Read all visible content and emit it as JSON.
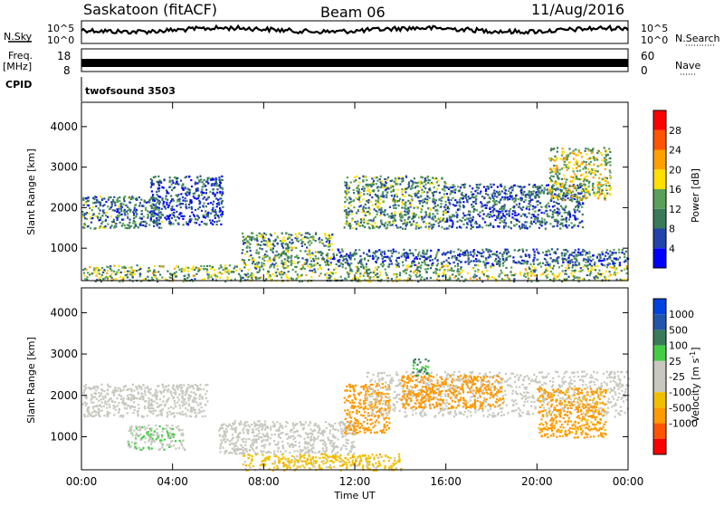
{
  "header": {
    "station": "Saskatoon (fitACF)",
    "beam": "Beam 06",
    "date": "11/Aug/2016"
  },
  "side_labels": {
    "nsky": "N.Sky",
    "freq": "Freq.",
    "freq_unit": "[MHz]",
    "cpid": "CPID",
    "nsearch": "N.Search",
    "nave": "Nave"
  },
  "cpid_value": "twofsound 3503",
  "noise_panel": {
    "left_ticks": [
      "10^5",
      "10^0"
    ],
    "right_ticks": [
      "10^5",
      "10^0"
    ]
  },
  "freq_panel": {
    "left_ticks": [
      "18",
      "8"
    ],
    "right_ticks": [
      "60",
      "0"
    ]
  },
  "colors": {
    "power": [
      "#0000ff",
      "#2244aa",
      "#3a7a5a",
      "#5aa05a",
      "#ffe000",
      "#ffa000",
      "#ff5500",
      "#ff0000"
    ],
    "velocity": [
      "#ff0000",
      "#ff5500",
      "#ff9900",
      "#f0c000",
      "#c8c8c0",
      "#c8c8c0",
      "#44cc44",
      "#3a7a5a",
      "#2255aa",
      "#0044dd"
    ]
  },
  "chart_data": [
    {
      "type": "heatmap",
      "title": "",
      "xlabel": "",
      "ylabel": "Slant Range [km]",
      "xlim": [
        0,
        24
      ],
      "ylim": [
        200,
        4600
      ],
      "x_tick_labels": [
        "00:00",
        "04:00",
        "08:00",
        "12:00",
        "16:00",
        "20:00",
        "00:00"
      ],
      "x_ticks_hours": [
        0,
        4,
        8,
        12,
        16,
        20,
        24
      ],
      "y_ticks": [
        1000,
        2000,
        3000,
        4000
      ],
      "y_tick_labels": [
        "1000",
        "2000",
        "3000",
        "4000"
      ],
      "colorbar": {
        "label": "Power [dB]",
        "range": [
          0,
          32
        ],
        "tick_values": [
          4,
          8,
          12,
          16,
          20,
          24,
          28
        ],
        "tick_labels": [
          "4",
          "8",
          "12",
          "16",
          "20",
          "24",
          "28"
        ]
      },
      "scatter_regions": [
        {
          "t0": 0.0,
          "t1": 3.5,
          "r0": 1500,
          "r1": 2300,
          "value": 10
        },
        {
          "t0": 3.0,
          "t1": 6.2,
          "r0": 1600,
          "r1": 2800,
          "value": 6
        },
        {
          "t0": 0.0,
          "t1": 24.0,
          "r0": 200,
          "r1": 600,
          "value": 14
        },
        {
          "t0": 7.0,
          "t1": 11.0,
          "r0": 600,
          "r1": 1400,
          "value": 12
        },
        {
          "t0": 11.0,
          "t1": 24.0,
          "r0": 600,
          "r1": 1000,
          "value": 8
        },
        {
          "t0": 11.5,
          "t1": 16.0,
          "r0": 1500,
          "r1": 2800,
          "value": 12
        },
        {
          "t0": 16.0,
          "t1": 22.0,
          "r0": 1500,
          "r1": 2600,
          "value": 8
        },
        {
          "t0": 20.5,
          "t1": 23.2,
          "r0": 2200,
          "r1": 3500,
          "value": 16
        }
      ]
    },
    {
      "type": "heatmap",
      "title": "",
      "xlabel": "Time UT",
      "ylabel": "Slant Range [km]",
      "xlim": [
        0,
        24
      ],
      "ylim": [
        200,
        4600
      ],
      "x_tick_labels": [
        "00:00",
        "04:00",
        "08:00",
        "12:00",
        "16:00",
        "20:00",
        "00:00"
      ],
      "x_ticks_hours": [
        0,
        4,
        8,
        12,
        16,
        20,
        24
      ],
      "y_ticks": [
        1000,
        2000,
        3000,
        4000
      ],
      "y_tick_labels": [
        "1000",
        "2000",
        "3000",
        "4000"
      ],
      "colorbar": {
        "label": "Velocity [m s-1]",
        "unit_main": "Velocity [m s",
        "unit_sup": "-1",
        "unit_end": "]",
        "tick_labels": [
          "1000",
          "500",
          "100",
          "25",
          "-25",
          "-100",
          "-500",
          "-1000"
        ]
      },
      "scatter_regions": [
        {
          "t0": 0.0,
          "t1": 5.5,
          "r0": 1500,
          "r1": 2300,
          "value": 0
        },
        {
          "t0": 2.0,
          "t1": 4.5,
          "r0": 700,
          "r1": 1300,
          "value": 80
        },
        {
          "t0": 6.0,
          "t1": 12.0,
          "r0": 600,
          "r1": 1400,
          "value": 0
        },
        {
          "t0": 7.0,
          "t1": 14.0,
          "r0": 200,
          "r1": 600,
          "value": -60
        },
        {
          "t0": 11.5,
          "t1": 13.5,
          "r0": 1100,
          "r1": 2300,
          "value": -200
        },
        {
          "t0": 12.5,
          "t1": 24.0,
          "r0": 1500,
          "r1": 2600,
          "value": 0
        },
        {
          "t0": 14.0,
          "t1": 18.5,
          "r0": 1700,
          "r1": 2500,
          "value": -300
        },
        {
          "t0": 20.0,
          "t1": 23.0,
          "r0": 1000,
          "r1": 2200,
          "value": -150
        },
        {
          "t0": 14.5,
          "t1": 15.2,
          "r0": 2500,
          "r1": 2900,
          "value": 600
        }
      ]
    }
  ]
}
